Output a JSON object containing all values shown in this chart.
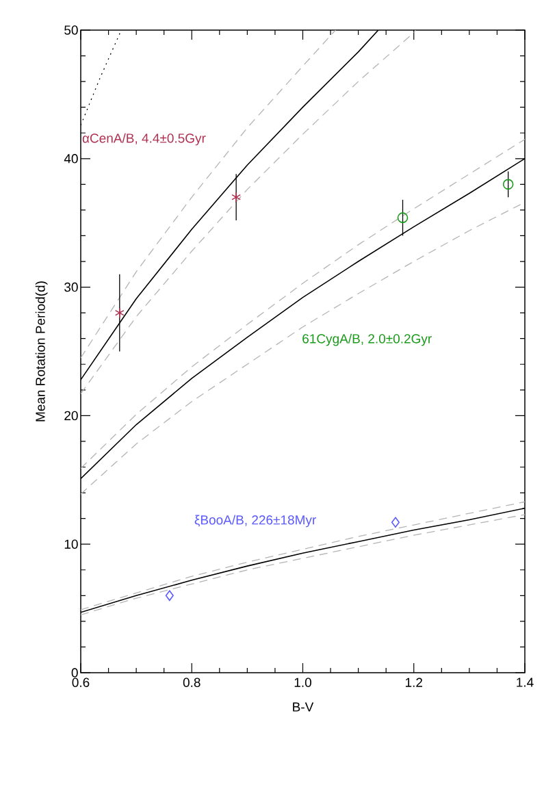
{
  "chart_data": {
    "type": "scatter",
    "xlabel": "B-V",
    "ylabel": "Mean Rotation Period(d)",
    "xlim": [
      0.6,
      1.4
    ],
    "ylim": [
      0,
      50
    ],
    "xticks": [
      0.6,
      0.8,
      {
        "value": 1.0,
        "label": "1.0"
      },
      1.2,
      1.4
    ],
    "yticks": [
      0,
      10,
      20,
      30,
      40,
      50
    ],
    "grid": false,
    "series": [
      {
        "type": "line",
        "color": "#000000",
        "line_style": "solid",
        "marker": "none",
        "x": [
          0.6,
          0.7,
          0.8,
          0.9,
          1.0,
          1.1,
          1.136
        ],
        "values": [
          22.8,
          29.1,
          34.5,
          39.5,
          44.0,
          48.3,
          50
        ]
      },
      {
        "type": "line",
        "color": "#b4b4b4",
        "line_style": "dashed",
        "marker": "none",
        "x": [
          0.6,
          0.7,
          0.8,
          0.9,
          1.0,
          1.059
        ],
        "values": [
          24.5,
          31.2,
          37.0,
          42.4,
          47.2,
          50
        ]
      },
      {
        "type": "line",
        "color": "#b4b4b4",
        "line_style": "dashed",
        "marker": "none",
        "x": [
          0.6,
          0.7,
          0.8,
          0.9,
          1.0,
          1.1,
          1.2,
          1.203
        ],
        "values": [
          21.7,
          27.7,
          32.8,
          37.6,
          41.9,
          46.0,
          49.8,
          50
        ]
      },
      {
        "type": "line",
        "color": "#000000",
        "line_style": "dotted",
        "marker": "none",
        "x": [
          0.6,
          0.635,
          0.673
        ],
        "values": [
          42.6,
          46.3,
          50
        ]
      },
      {
        "type": "line",
        "color": "#000000",
        "line_style": "solid",
        "marker": "none",
        "x": [
          0.6,
          0.7,
          0.8,
          0.9,
          1.0,
          1.1,
          1.2,
          1.3,
          1.4
        ],
        "values": [
          15.1,
          19.3,
          22.9,
          26.1,
          29.2,
          32.0,
          34.7,
          37.3,
          40.0
        ]
      },
      {
        "type": "line",
        "color": "#b4b4b4",
        "line_style": "dashed",
        "marker": "none",
        "x": [
          0.6,
          0.7,
          0.8,
          0.9,
          1.0,
          1.1,
          1.2,
          1.3,
          1.4
        ],
        "values": [
          15.9,
          20.1,
          23.8,
          27.1,
          30.3,
          33.3,
          36.1,
          38.8,
          41.5
        ]
      },
      {
        "type": "line",
        "color": "#b4b4b4",
        "line_style": "dashed",
        "marker": "none",
        "x": [
          0.6,
          0.7,
          0.8,
          0.9,
          1.0,
          1.1,
          1.2,
          1.3,
          1.4
        ],
        "values": [
          13.9,
          17.8,
          21.1,
          24.0,
          26.9,
          29.5,
          32.0,
          34.4,
          36.6
        ]
      },
      {
        "type": "line",
        "color": "#000000",
        "line_style": "solid",
        "marker": "none",
        "x": [
          0.6,
          0.7,
          0.8,
          0.9,
          1.0,
          1.1,
          1.2,
          1.3,
          1.4
        ],
        "values": [
          4.7,
          6.0,
          7.2,
          8.3,
          9.3,
          10.2,
          11.1,
          11.9,
          12.8
        ]
      },
      {
        "type": "line",
        "color": "#b4b4b4",
        "line_style": "dashed",
        "marker": "none",
        "x": [
          0.6,
          0.7,
          0.8,
          0.9,
          1.0,
          1.1,
          1.2,
          1.3,
          1.4
        ],
        "values": [
          4.9,
          6.2,
          7.5,
          8.6,
          9.6,
          10.6,
          11.5,
          12.4,
          13.3
        ]
      },
      {
        "type": "line",
        "color": "#b4b4b4",
        "line_style": "dashed",
        "marker": "none",
        "x": [
          0.6,
          0.7,
          0.8,
          0.9,
          1.0,
          1.1,
          1.2,
          1.3,
          1.4
        ],
        "values": [
          4.5,
          5.8,
          6.9,
          8.0,
          8.9,
          9.8,
          10.7,
          11.5,
          12.3
        ]
      },
      {
        "name": "αCenA/B, 4.4±0.5Gyr",
        "color": "#b03050",
        "marker": "cross",
        "x": [
          0.67,
          0.88
        ],
        "values": [
          28.0,
          37.0
        ],
        "errors": [
          3.0,
          1.8
        ]
      },
      {
        "name": "61CygA/B, 2.0±0.2Gyr",
        "color": "#1a9a1a",
        "marker": "circle",
        "x": [
          1.18,
          1.37
        ],
        "values": [
          35.4,
          38.0
        ],
        "errors": [
          1.4,
          1.0
        ]
      },
      {
        "name": "ξBooA/B, 226±18Myr",
        "color": "#5a5aff",
        "marker": "diamond",
        "x": [
          0.76,
          1.167
        ],
        "values": [
          6.0,
          11.7
        ]
      }
    ]
  }
}
